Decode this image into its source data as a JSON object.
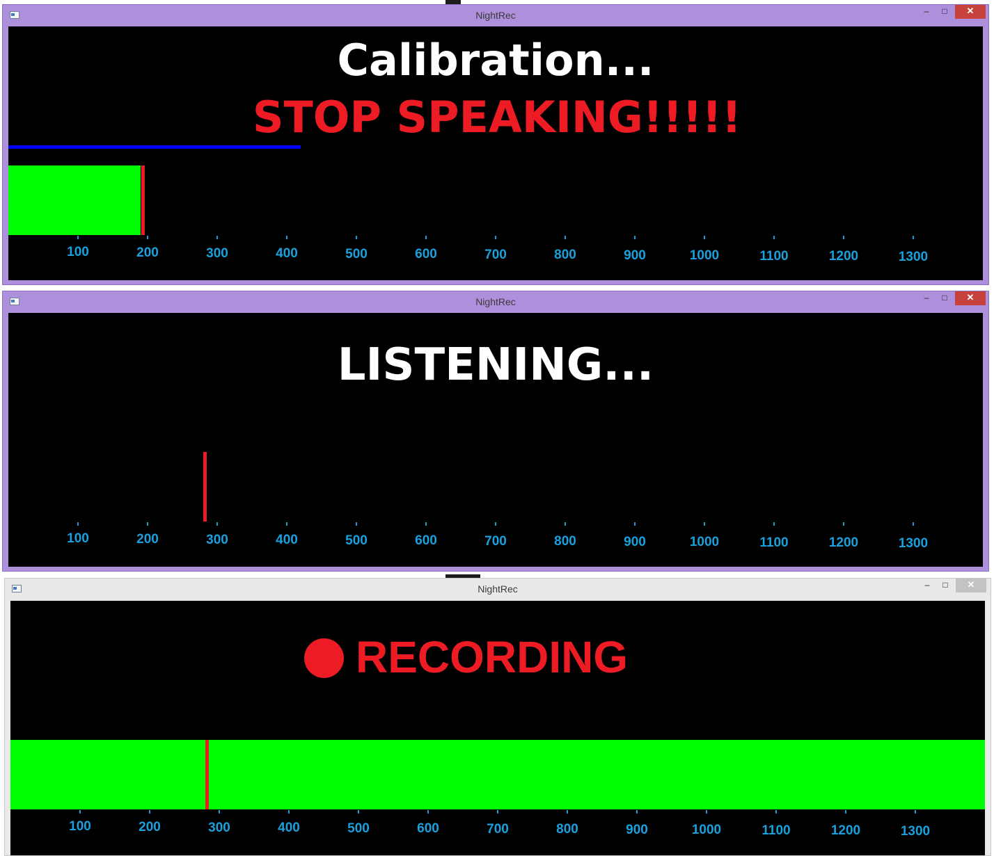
{
  "colors": {
    "meter_green": "#00ff00",
    "marker_red": "#ed1c24",
    "axis_blue": "#1aa0dc",
    "progress_blue": "#0000ff"
  },
  "windows": [
    {
      "title": "NightRec",
      "state": "active",
      "headline": "Calibration...",
      "warning": "STOP SPEAKING!!!!!",
      "calibration_progress_percent": 30,
      "level_bar_end_value": 190,
      "marker_value": 193,
      "axis_labels": [
        "100",
        "200",
        "300",
        "400",
        "500",
        "600",
        "700",
        "800",
        "900",
        "1000",
        "1100",
        "1200",
        "1300"
      ]
    },
    {
      "title": "NightRec",
      "state": "active",
      "headline": "LISTENING...",
      "marker_value": 282,
      "axis_labels": [
        "100",
        "200",
        "300",
        "400",
        "500",
        "600",
        "700",
        "800",
        "900",
        "1000",
        "1100",
        "1200",
        "1300"
      ]
    },
    {
      "title": "NightRec",
      "state": "inactive",
      "headline": "RECORDING",
      "level_bar_end_value": 1400,
      "marker_value": 282,
      "axis_labels": [
        "100",
        "200",
        "300",
        "400",
        "500",
        "600",
        "700",
        "800",
        "900",
        "1000",
        "1100",
        "1200",
        "1300"
      ]
    }
  ],
  "titlebar_buttons": {
    "minimize": "–",
    "maximize": "□",
    "close": "✕"
  }
}
